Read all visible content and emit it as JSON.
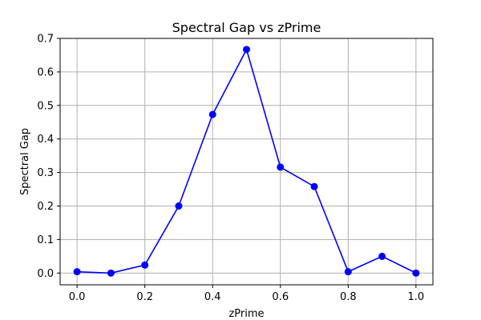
{
  "chart_data": {
    "type": "line",
    "title": "Spectral Gap vs zPrime",
    "xlabel": "zPrime",
    "ylabel": "Spectral Gap",
    "xlim": [
      -0.05,
      1.05
    ],
    "ylim": [
      -0.035,
      0.7
    ],
    "x_ticks": [
      0.0,
      0.2,
      0.4,
      0.6,
      0.8,
      1.0
    ],
    "x_tick_labels": [
      "0.0",
      "0.2",
      "0.4",
      "0.6",
      "0.8",
      "1.0"
    ],
    "y_ticks": [
      0.0,
      0.1,
      0.2,
      0.3,
      0.4,
      0.5,
      0.6,
      0.7
    ],
    "y_tick_labels": [
      "0.0",
      "0.1",
      "0.2",
      "0.3",
      "0.4",
      "0.5",
      "0.6",
      "0.7"
    ],
    "grid": true,
    "legend": "none",
    "series": [
      {
        "color": "#0000ff",
        "marker": "circle",
        "x": [
          0.0,
          0.1,
          0.2,
          0.3,
          0.4,
          0.5,
          0.6,
          0.7,
          0.8,
          0.9,
          1.0
        ],
        "y": [
          0.004,
          0.0,
          0.024,
          0.2,
          0.473,
          0.667,
          0.316,
          0.258,
          0.004,
          0.05,
          0.0
        ]
      }
    ]
  }
}
